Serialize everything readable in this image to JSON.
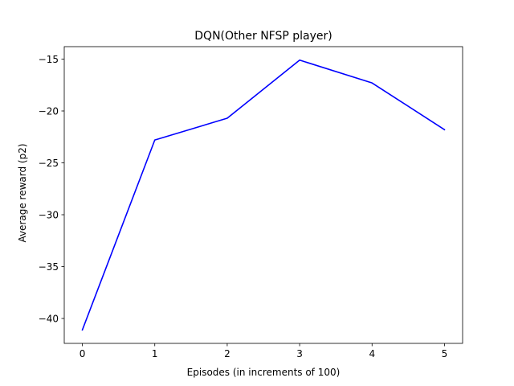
{
  "chart_data": {
    "type": "line",
    "title": "DQN(Other NFSP player)",
    "xlabel": "Episodes (in increments of 100)",
    "ylabel": "Average reward (p2)",
    "x": [
      0,
      1,
      2,
      3,
      4,
      5
    ],
    "series": [
      {
        "values": [
          -41.1,
          -22.8,
          -20.7,
          -15.1,
          -17.3,
          -21.8
        ],
        "color": "#0000ff"
      }
    ],
    "xticks": [
      0,
      1,
      2,
      3,
      4,
      5
    ],
    "xtick_labels": [
      "0",
      "1",
      "2",
      "3",
      "4",
      "5"
    ],
    "yticks": [
      -40,
      -35,
      -30,
      -25,
      -20,
      -15
    ],
    "ytick_labels": [
      "−40",
      "−35",
      "−30",
      "−25",
      "−20",
      "−15"
    ],
    "xlim": [
      -0.25,
      5.25
    ],
    "ylim": [
      -42.4,
      -13.8
    ],
    "grid": false,
    "legend": false
  }
}
